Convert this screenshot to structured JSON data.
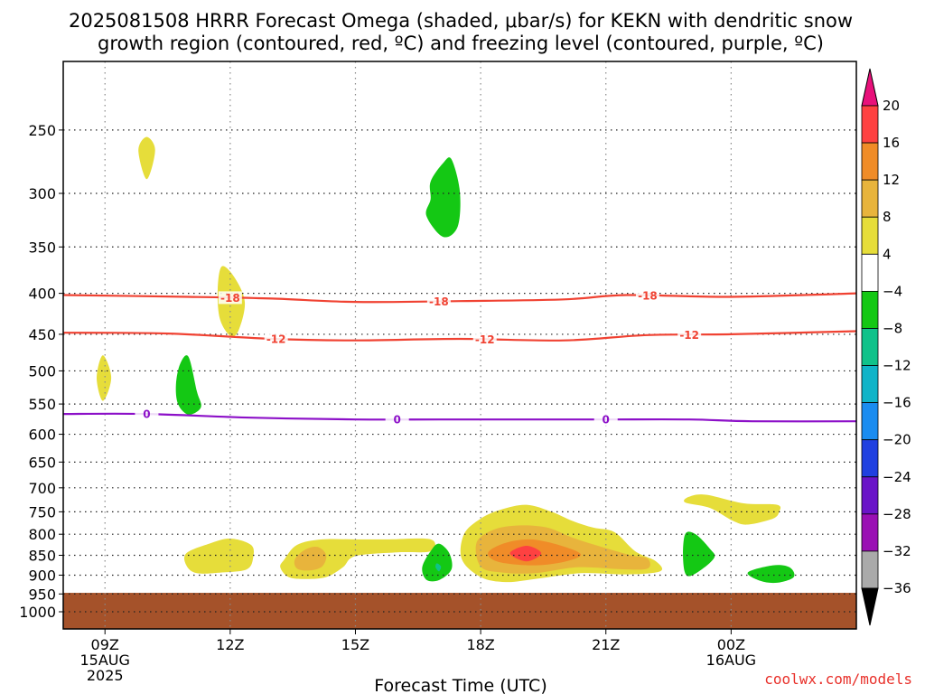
{
  "chart_data": {
    "type": "contour",
    "title_line1": "2025081508 HRRR Forecast Omega (shaded, μbar/s) for KEKN with dendritic snow",
    "title_line2": "growth region (contoured, red, ºC) and freezing level (contoured, purple, ºC)",
    "xlabel": "Forecast Time (UTC)",
    "credit": "coolwx.com/models",
    "x_axis": {
      "range_hours": [
        8.0,
        27.0
      ],
      "ticks": [
        {
          "hour": 9,
          "lines": [
            "09Z",
            "15AUG",
            "2025"
          ]
        },
        {
          "hour": 12,
          "lines": [
            "12Z"
          ]
        },
        {
          "hour": 15,
          "lines": [
            "15Z"
          ]
        },
        {
          "hour": 18,
          "lines": [
            "18Z"
          ]
        },
        {
          "hour": 21,
          "lines": [
            "21Z"
          ]
        },
        {
          "hour": 24,
          "lines": [
            "00Z",
            "16AUG"
          ]
        }
      ]
    },
    "y_axis": {
      "label": "",
      "scale": "log-pressure",
      "range_hpa": [
        200,
        1050
      ],
      "ticks": [
        250,
        300,
        350,
        400,
        450,
        500,
        550,
        600,
        650,
        700,
        750,
        800,
        850,
        900,
        950,
        1000
      ]
    },
    "grid": true,
    "ground": {
      "top_hpa": 947,
      "color": "#a5522a"
    },
    "colorbar": {
      "levels": [
        "20",
        "16",
        "12",
        "8",
        "4",
        "−4",
        "−8",
        "−12",
        "−16",
        "−20",
        "−24",
        "−28",
        "−32",
        "−36"
      ],
      "colors": [
        "#fe4141",
        "#f08c28",
        "#e8b43c",
        "#e6dd3a",
        "#ffffff",
        "#14c814",
        "#10c28a",
        "#10b4c8",
        "#1a8cf0",
        "#2040e0",
        "#6a14c8",
        "#9a10b4",
        "#aaaaaa"
      ],
      "top_arrow_color": "#e8107a",
      "bottom_arrow_color": "#000000"
    },
    "omega_regions": [
      {
        "color": "#e6dd3a",
        "points": [
          [
            10.0,
            255
          ],
          [
            10.2,
            265
          ],
          [
            10.0,
            288
          ],
          [
            9.8,
            265
          ]
        ]
      },
      {
        "color": "#e6dd3a",
        "points": [
          [
            11.8,
            370
          ],
          [
            12.1,
            382
          ],
          [
            12.35,
            410
          ],
          [
            12.2,
            445
          ],
          [
            12.0,
            452
          ],
          [
            11.75,
            430
          ],
          [
            11.7,
            395
          ]
        ]
      },
      {
        "color": "#e6dd3a",
        "points": [
          [
            8.95,
            478
          ],
          [
            9.15,
            510
          ],
          [
            8.95,
            545
          ],
          [
            8.8,
            510
          ]
        ]
      },
      {
        "color": "#e6dd3a",
        "points": [
          [
            10.95,
            845
          ],
          [
            11.5,
            822
          ],
          [
            12.0,
            810
          ],
          [
            12.5,
            825
          ],
          [
            12.55,
            855
          ],
          [
            12.4,
            885
          ],
          [
            11.8,
            893
          ],
          [
            11.2,
            895
          ],
          [
            10.95,
            875
          ]
        ]
      },
      {
        "color": "#e6dd3a",
        "points": [
          [
            13.3,
            860
          ],
          [
            13.6,
            825
          ],
          [
            14.2,
            812
          ],
          [
            15.0,
            812
          ],
          [
            15.8,
            812
          ],
          [
            16.8,
            812
          ],
          [
            16.8,
            840
          ],
          [
            16.0,
            843
          ],
          [
            15.0,
            852
          ],
          [
            14.7,
            880
          ],
          [
            14.3,
            905
          ],
          [
            13.8,
            910
          ],
          [
            13.4,
            905
          ],
          [
            13.2,
            880
          ]
        ]
      },
      {
        "color": "#e8b43c",
        "points": [
          [
            13.55,
            860
          ],
          [
            13.8,
            836
          ],
          [
            14.1,
            830
          ],
          [
            14.3,
            850
          ],
          [
            14.2,
            878
          ],
          [
            13.9,
            888
          ],
          [
            13.6,
            883
          ]
        ]
      },
      {
        "color": "#14c814",
        "points": [
          [
            16.8,
            290
          ],
          [
            17.1,
            275
          ],
          [
            17.3,
            272
          ],
          [
            17.5,
            298
          ],
          [
            17.45,
            330
          ],
          [
            17.1,
            340
          ],
          [
            16.7,
            320
          ],
          [
            16.8,
            305
          ]
        ]
      },
      {
        "color": "#14c814",
        "points": [
          [
            10.8,
            490
          ],
          [
            11.0,
            480
          ],
          [
            11.2,
            530
          ],
          [
            11.3,
            555
          ],
          [
            11.0,
            567
          ],
          [
            10.75,
            550
          ],
          [
            10.7,
            520
          ]
        ]
      },
      {
        "color": "#14c814",
        "points": [
          [
            16.6,
            880
          ],
          [
            16.8,
            840
          ],
          [
            17.0,
            822
          ],
          [
            17.25,
            845
          ],
          [
            17.3,
            885
          ],
          [
            17.0,
            913
          ],
          [
            16.7,
            912
          ]
        ]
      },
      {
        "color": "#10c28a",
        "points": [
          [
            16.95,
            870
          ],
          [
            17.05,
            878
          ],
          [
            17.0,
            890
          ],
          [
            16.92,
            880
          ]
        ]
      },
      {
        "color": "#e6dd3a",
        "points": [
          [
            17.6,
            800
          ],
          [
            18.0,
            765
          ],
          [
            18.5,
            745
          ],
          [
            19.1,
            735
          ],
          [
            19.7,
            750
          ],
          [
            20.2,
            770
          ],
          [
            20.7,
            785
          ],
          [
            21.2,
            795
          ],
          [
            21.7,
            840
          ],
          [
            22.2,
            865
          ],
          [
            22.3,
            890
          ],
          [
            21.5,
            898
          ],
          [
            20.4,
            895
          ],
          [
            19.3,
            910
          ],
          [
            18.6,
            918
          ],
          [
            18.0,
            905
          ],
          [
            17.55,
            860
          ]
        ]
      },
      {
        "color": "#e8b43c",
        "points": [
          [
            17.9,
            820
          ],
          [
            18.3,
            790
          ],
          [
            18.9,
            780
          ],
          [
            19.6,
            785
          ],
          [
            20.2,
            808
          ],
          [
            20.9,
            830
          ],
          [
            21.6,
            850
          ],
          [
            22.0,
            858
          ],
          [
            22.0,
            883
          ],
          [
            21.4,
            885
          ],
          [
            20.3,
            880
          ],
          [
            19.3,
            895
          ],
          [
            18.5,
            893
          ],
          [
            18.0,
            878
          ]
        ]
      },
      {
        "color": "#f08c28",
        "points": [
          [
            18.2,
            840
          ],
          [
            18.6,
            820
          ],
          [
            19.2,
            812
          ],
          [
            19.9,
            826
          ],
          [
            20.4,
            848
          ],
          [
            20.0,
            866
          ],
          [
            19.3,
            875
          ],
          [
            18.6,
            870
          ],
          [
            18.25,
            858
          ]
        ]
      },
      {
        "color": "#fe4141",
        "points": [
          [
            18.7,
            845
          ],
          [
            19.1,
            827
          ],
          [
            19.45,
            845
          ],
          [
            19.1,
            865
          ]
        ]
      },
      {
        "color": "#e6dd3a",
        "points": [
          [
            23.0,
            718
          ],
          [
            23.4,
            714
          ],
          [
            24.3,
            732
          ],
          [
            25.1,
            735
          ],
          [
            25.15,
            750
          ],
          [
            25.0,
            765
          ],
          [
            24.4,
            778
          ],
          [
            24.05,
            770
          ],
          [
            23.5,
            742
          ],
          [
            22.9,
            730
          ]
        ]
      },
      {
        "color": "#14c814",
        "points": [
          [
            22.9,
            800
          ],
          [
            23.15,
            800
          ],
          [
            23.5,
            835
          ],
          [
            23.6,
            855
          ],
          [
            23.3,
            885
          ],
          [
            22.95,
            902
          ],
          [
            22.85,
            860
          ]
        ]
      },
      {
        "color": "#14c814",
        "points": [
          [
            24.4,
            893
          ],
          [
            25.0,
            875
          ],
          [
            25.4,
            880
          ],
          [
            25.5,
            905
          ],
          [
            25.1,
            920
          ],
          [
            24.7,
            915
          ]
        ]
      }
    ],
    "contours": [
      {
        "value": -18,
        "color": "#f04232",
        "label": "-18",
        "points": [
          [
            8.0,
            402
          ],
          [
            11.0,
            404
          ],
          [
            13.0,
            406
          ],
          [
            15.0,
            410
          ],
          [
            17.5,
            409
          ],
          [
            20.0,
            407
          ],
          [
            21.5,
            402
          ],
          [
            24.0,
            404
          ],
          [
            27.0,
            400
          ]
        ],
        "label_hours": [
          12.0,
          17.0,
          22.0
        ]
      },
      {
        "value": -12,
        "color": "#f04232",
        "label": "-12",
        "points": [
          [
            8.0,
            448
          ],
          [
            10.5,
            449
          ],
          [
            13.0,
            456
          ],
          [
            15.0,
            458
          ],
          [
            17.5,
            456
          ],
          [
            20.0,
            458
          ],
          [
            22.0,
            451
          ],
          [
            24.0,
            450
          ],
          [
            27.0,
            446
          ]
        ],
        "label_hours": [
          13.1,
          18.1,
          23.0
        ]
      },
      {
        "value": 0,
        "color": "#8c10c8",
        "label": "0",
        "points": [
          [
            8.0,
            566
          ],
          [
            10.0,
            566
          ],
          [
            12.5,
            572
          ],
          [
            15.0,
            575
          ],
          [
            17.0,
            575
          ],
          [
            19.0,
            575
          ],
          [
            21.0,
            575
          ],
          [
            23.0,
            575
          ],
          [
            24.5,
            578
          ],
          [
            27.0,
            578
          ]
        ],
        "label_hours": [
          10.0,
          16.0,
          21.0
        ]
      }
    ]
  }
}
